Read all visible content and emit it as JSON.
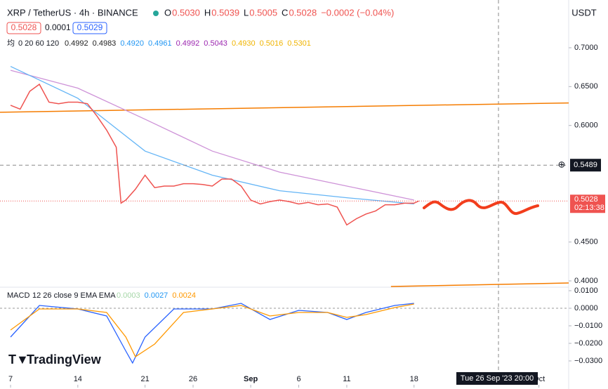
{
  "header": {
    "symbol": "XRP / TetherUS · 4h · BINANCE",
    "ohlc": [
      {
        "key": "O",
        "value": "0.5030"
      },
      {
        "key": "H",
        "value": "0.5039"
      },
      {
        "key": "L",
        "value": "0.5005"
      },
      {
        "key": "C",
        "value": "0.5028"
      }
    ],
    "change": "−0.0002 (−0.04%)",
    "sell": "0.5028",
    "spread": "0.0001",
    "buy": "0.5029",
    "currency": "USDT"
  },
  "ma_legend": {
    "label": "均",
    "params": "0 20 60 120",
    "values": [
      {
        "text": "0.4992",
        "color": "#222222"
      },
      {
        "text": "0.4983",
        "color": "#222222"
      },
      {
        "text": "0.4920",
        "color": "#2196f3"
      },
      {
        "text": "0.4961",
        "color": "#2196f3"
      },
      {
        "text": "0.4992",
        "color": "#9c27b0"
      },
      {
        "text": "0.5043",
        "color": "#9c27b0"
      },
      {
        "text": "0.4930",
        "color": "#f0b400"
      },
      {
        "text": "0.5016",
        "color": "#f0b400"
      },
      {
        "text": "0.5301",
        "color": "#f0b400"
      }
    ]
  },
  "macd_legend": {
    "label": "MACD",
    "params": "12 26 close 9 EMA EMA",
    "values": [
      {
        "text": "0.0003",
        "color": "#a5d6a7"
      },
      {
        "text": "0.0027",
        "color": "#2196f3"
      },
      {
        "text": "0.0024",
        "color": "#ff9800"
      }
    ]
  },
  "chart_data": {
    "type": "line",
    "xlim": [
      -1.1,
      58.1
    ],
    "xticks": [
      {
        "value": 0,
        "label": "7"
      },
      {
        "value": 7,
        "label": "14"
      },
      {
        "value": 14,
        "label": "21"
      },
      {
        "value": 19,
        "label": "26"
      },
      {
        "value": 25,
        "label": "Sep"
      },
      {
        "value": 30,
        "label": "6"
      },
      {
        "value": 35,
        "label": "11"
      },
      {
        "value": 42,
        "label": "18"
      },
      {
        "value": 55,
        "label": "Oct"
      }
    ],
    "ylim": [
      0.3928,
      0.7542
    ],
    "yticks": [
      {
        "value": 0.4,
        "label": "0.4000"
      },
      {
        "value": 0.45,
        "label": "0.4500"
      },
      {
        "value": 0.6,
        "label": "0.6000"
      },
      {
        "value": 0.65,
        "label": "0.6500"
      },
      {
        "value": 0.7,
        "label": "0.7000"
      }
    ],
    "price": {
      "color": "#ef5350",
      "x": [
        0,
        1,
        2,
        3,
        4,
        5,
        6,
        7,
        8,
        9,
        10,
        11,
        11.5,
        12,
        13,
        14,
        15,
        16,
        17,
        18,
        19,
        20,
        21,
        22,
        23,
        24,
        25,
        26,
        27,
        28,
        29,
        30,
        31,
        32,
        33,
        34,
        35,
        36,
        37,
        38,
        39,
        40,
        41,
        42,
        42.5
      ],
      "values": [
        0.626,
        0.621,
        0.644,
        0.653,
        0.63,
        0.628,
        0.63,
        0.63,
        0.628,
        0.612,
        0.594,
        0.572,
        0.5,
        0.504,
        0.518,
        0.536,
        0.52,
        0.522,
        0.522,
        0.525,
        0.525,
        0.524,
        0.522,
        0.531,
        0.531,
        0.522,
        0.504,
        0.499,
        0.502,
        0.504,
        0.502,
        0.499,
        0.501,
        0.498,
        0.499,
        0.495,
        0.472,
        0.48,
        0.486,
        0.49,
        0.498,
        0.498,
        0.5,
        0.5,
        0.5028
      ]
    },
    "ma_lines": [
      {
        "color": "#ce93d8",
        "x": [
          0,
          7,
          14,
          21,
          28,
          35,
          42
        ],
        "values": [
          0.671,
          0.648,
          0.608,
          0.567,
          0.54,
          0.522,
          0.504
        ]
      },
      {
        "color": "#64b5f6",
        "x": [
          0,
          7,
          14,
          21,
          28,
          35,
          42
        ],
        "values": [
          0.676,
          0.635,
          0.567,
          0.536,
          0.516,
          0.507,
          0.499
        ]
      }
    ],
    "trend_lines": [
      {
        "color": "#f57c00",
        "x": [
          -1.1,
          58.1
        ],
        "values": [
          0.617,
          0.629
        ]
      },
      {
        "color": "#f57c00",
        "x": [
          39.6,
          58.1
        ],
        "values": [
          0.3928,
          0.3973
        ]
      }
    ],
    "alert_level": {
      "value": 0.5489,
      "label": "0.5489"
    },
    "last_price": {
      "value": 0.5028,
      "label": "0.5028",
      "countdown": "02:13:38"
    },
    "macd": {
      "ylim": [
        -0.0424,
        0.0116
      ],
      "yticks": [
        {
          "value": 0.01,
          "label": "0.0100"
        },
        {
          "value": 0,
          "label": "0.0000"
        },
        {
          "value": -0.01,
          "label": "−0.0100"
        },
        {
          "value": -0.02,
          "label": "−0.0200"
        },
        {
          "value": -0.03,
          "label": "−0.0300"
        }
      ],
      "macd_line": {
        "color": "#2962ff",
        "x": [
          0,
          3,
          7,
          10,
          12,
          12.7,
          14,
          17,
          21,
          24,
          27,
          30,
          33,
          35,
          37,
          40,
          42
        ],
        "values": [
          -0.0164,
          0.0016,
          -0.0004,
          -0.0044,
          -0.0244,
          -0.0312,
          -0.0164,
          -0.0004,
          -0.0004,
          0.0028,
          -0.0064,
          -0.0012,
          -0.0024,
          -0.0064,
          -0.0024,
          0.0016,
          0.0028
        ]
      },
      "signal_line": {
        "color": "#ff9800",
        "x": [
          0,
          3,
          7,
          10,
          12,
          13,
          15,
          18,
          21,
          24,
          27,
          30,
          33,
          35,
          37,
          40,
          42
        ],
        "values": [
          -0.0124,
          -0.0004,
          -0.0004,
          -0.0024,
          -0.0164,
          -0.0276,
          -0.0204,
          -0.0024,
          -0.0004,
          0.0016,
          -0.0044,
          -0.0024,
          -0.0024,
          -0.0052,
          -0.0036,
          0.0004,
          0.0024
        ]
      }
    },
    "crosshair_label": "Tue 26 Sep '23   20:00"
  },
  "brand": "TradingView"
}
